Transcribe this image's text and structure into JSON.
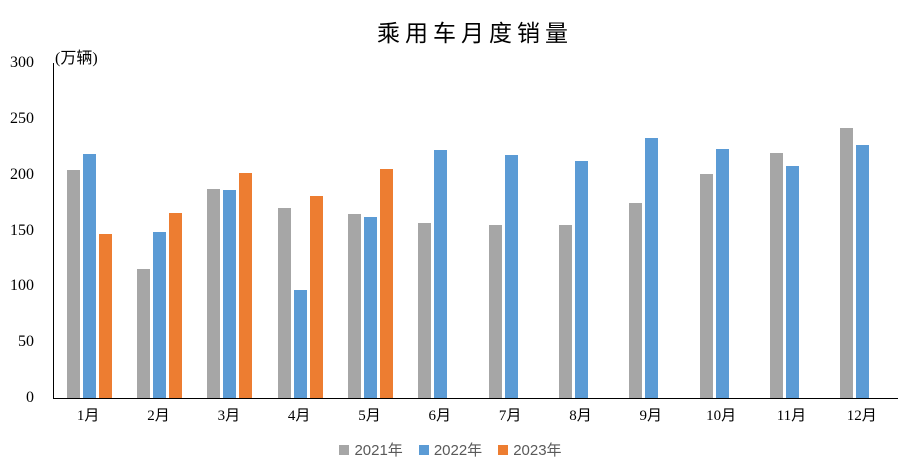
{
  "chart_data": {
    "type": "bar",
    "title": "乘用车月度销量",
    "unit": "(万辆)",
    "xlabel": "",
    "ylabel": "万辆",
    "ylim": [
      0,
      300
    ],
    "yticks": [
      300,
      250,
      200,
      150,
      100,
      50,
      0
    ],
    "grid": false,
    "legend_position": "bottom",
    "categories": [
      "1月",
      "2月",
      "3月",
      "4月",
      "5月",
      "6月",
      "7月",
      "8月",
      "9月",
      "10月",
      "11月",
      "12月"
    ],
    "series": [
      {
        "name": "2021年",
        "color": "#A6A6A6",
        "values": [
          204.5,
          115.5,
          187.4,
          170.4,
          164.6,
          156.9,
          155.1,
          155.2,
          175.1,
          200.7,
          219.2,
          242.2
        ]
      },
      {
        "name": "2022年",
        "color": "#5B9BD5",
        "values": [
          218.6,
          148.7,
          186.4,
          96.5,
          162.3,
          222.2,
          217.4,
          212.5,
          233.2,
          223.1,
          207.5,
          226.3
        ]
      },
      {
        "name": "2023年",
        "color": "#ED7D31",
        "values": [
          146.9,
          165.3,
          201.7,
          181.1,
          204.8,
          null,
          null,
          null,
          null,
          null,
          null,
          null
        ]
      }
    ],
    "colors": {
      "axis_line": "#000000",
      "tick_text": "#000000",
      "title_text": "#000000",
      "legend_text": "#595959",
      "background": "#ffffff"
    }
  }
}
